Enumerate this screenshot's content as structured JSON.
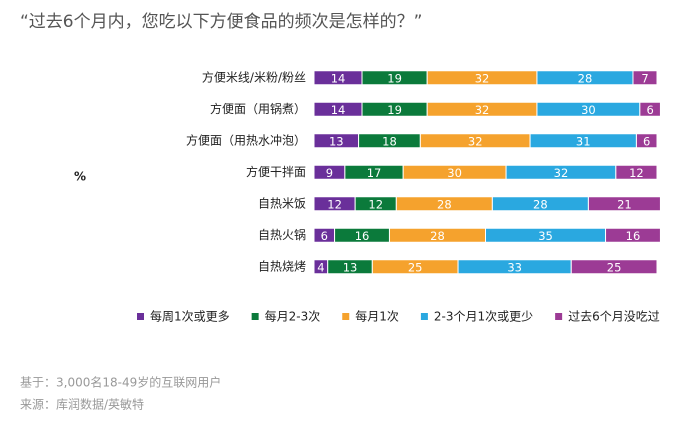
{
  "chart_data": {
    "type": "stacked-bar-horizontal",
    "title": "“过去6个月内，您吃以下方便食品的频次是怎样的？”",
    "y_label": "%",
    "categories": [
      "方便米线/米粉/粉丝",
      "方便面（用锅煮）",
      "方便面（用热水冲泡）",
      "方便干拌面",
      "自热米饭",
      "自热火锅",
      "自热烧烤"
    ],
    "series": [
      {
        "name": "每周1次或更多",
        "color": "#6a2f9a",
        "values": [
          14,
          14,
          13,
          9,
          12,
          6,
          4
        ]
      },
      {
        "name": "每月2-3次",
        "color": "#0b7a3b",
        "values": [
          19,
          19,
          18,
          17,
          12,
          16,
          13
        ]
      },
      {
        "name": "每月1次",
        "color": "#f5a22d",
        "values": [
          32,
          32,
          32,
          30,
          28,
          28,
          25
        ]
      },
      {
        "name": "2-3个月1次或更少",
        "color": "#2aa8e0",
        "values": [
          28,
          30,
          31,
          32,
          28,
          35,
          33
        ]
      },
      {
        "name": "过去6个月没吃过",
        "color": "#9c3b95",
        "values": [
          7,
          6,
          6,
          12,
          21,
          16,
          25
        ]
      }
    ],
    "xlim": [
      0,
      100
    ],
    "notes": [
      "基于：3,000名18-49岁的互联网用户",
      "来源：库润数据/英敏特"
    ]
  }
}
